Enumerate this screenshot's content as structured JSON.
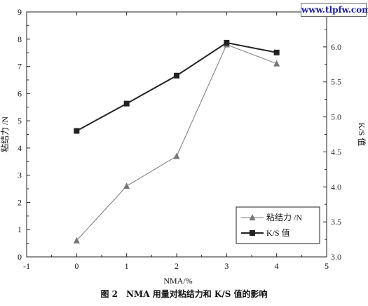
{
  "watermark": "www.tlpfw.com",
  "caption": "图 2　NMA 用量对粘结力和 K/S 值的影响",
  "chart_data": {
    "type": "line",
    "x": [
      0,
      1,
      2,
      3,
      4
    ],
    "xlabel": "NMA/%",
    "xlim": [
      -1,
      5
    ],
    "xticks": [
      -1,
      0,
      1,
      2,
      3,
      4,
      5
    ],
    "series": [
      {
        "name": "粘结力 /N",
        "axis": "left",
        "marker": "triangle",
        "color": "#777777",
        "values": [
          0.6,
          2.6,
          3.7,
          7.8,
          7.1
        ]
      },
      {
        "name": "K/S 值",
        "axis": "right",
        "marker": "square",
        "color": "#222222",
        "values": [
          4.8,
          5.19,
          5.59,
          6.06,
          5.92
        ]
      }
    ],
    "y_left": {
      "label": "粘结力 /N",
      "ylim": [
        0,
        9
      ],
      "ticks": [
        0,
        1,
        2,
        3,
        4,
        5,
        6,
        7,
        8,
        9
      ]
    },
    "y_right": {
      "label": "K/S 值",
      "ylim": [
        3.0,
        6.5
      ],
      "ticks": [
        "3.0",
        "3.5",
        "4.0",
        "4.5",
        "5.0",
        "5.5",
        "6.0",
        "6.5"
      ]
    },
    "legend": "bottom-right",
    "grid": false
  }
}
